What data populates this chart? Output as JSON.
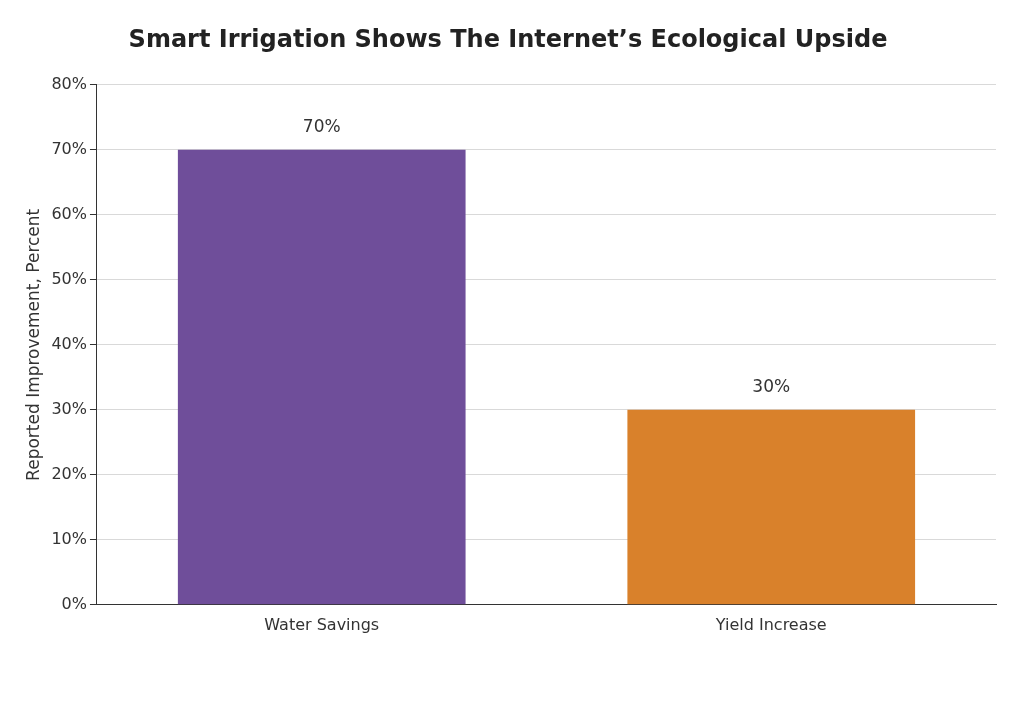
{
  "chart_data": {
    "type": "bar",
    "title": "Smart Irrigation Shows The Internet’s Ecological Upside",
    "ylabel": "Reported Improvement, Percent",
    "categories": [
      "Water Savings",
      "Yield Increase"
    ],
    "values": [
      70,
      30
    ],
    "colors": [
      "#6f4e9a",
      "#d9812b"
    ],
    "value_labels": [
      "70%",
      "30%"
    ],
    "ylim": [
      0,
      80
    ],
    "yticks": [
      {
        "value": 0,
        "label": "0%"
      },
      {
        "value": 10,
        "label": "10%"
      },
      {
        "value": 20,
        "label": "20%"
      },
      {
        "value": 30,
        "label": "30%"
      },
      {
        "value": 40,
        "label": "40%"
      },
      {
        "value": 50,
        "label": "50%"
      },
      {
        "value": 60,
        "label": "60%"
      },
      {
        "value": 70,
        "label": "70%"
      },
      {
        "value": 80,
        "label": "80%"
      }
    ],
    "grid": "y",
    "legend": false
  }
}
